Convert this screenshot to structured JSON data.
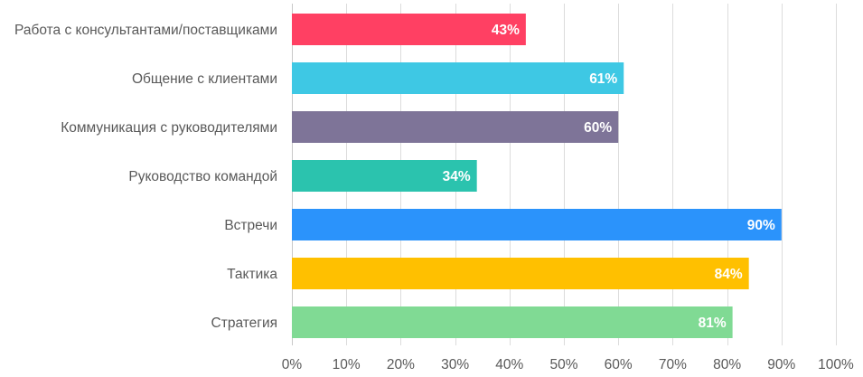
{
  "chart_data": {
    "type": "bar",
    "orientation": "horizontal",
    "categories": [
      "Работа с консультантами/поставщиками",
      "Общение  с клиентами",
      "Коммуникация  с руководителями",
      "Руководство командой",
      "Встречи",
      "Тактика",
      "Стратегия"
    ],
    "values": [
      43,
      61,
      60,
      34,
      90,
      84,
      81
    ],
    "value_labels": [
      "43%",
      "61%",
      "60%",
      "34%",
      "90%",
      "84%",
      "81%"
    ],
    "colors": [
      "#ff4063",
      "#3ec8e4",
      "#7e7498",
      "#2bc3ae",
      "#2b93fb",
      "#ffc000",
      "#80da94"
    ],
    "xlim": [
      0,
      100
    ],
    "x_ticks": [
      "0%",
      "10%",
      "20%",
      "30%",
      "40%",
      "50%",
      "60%",
      "70%",
      "80%",
      "90%",
      "100%"
    ],
    "grid": true,
    "legend": "none",
    "title": "",
    "xlabel": "",
    "ylabel": ""
  }
}
